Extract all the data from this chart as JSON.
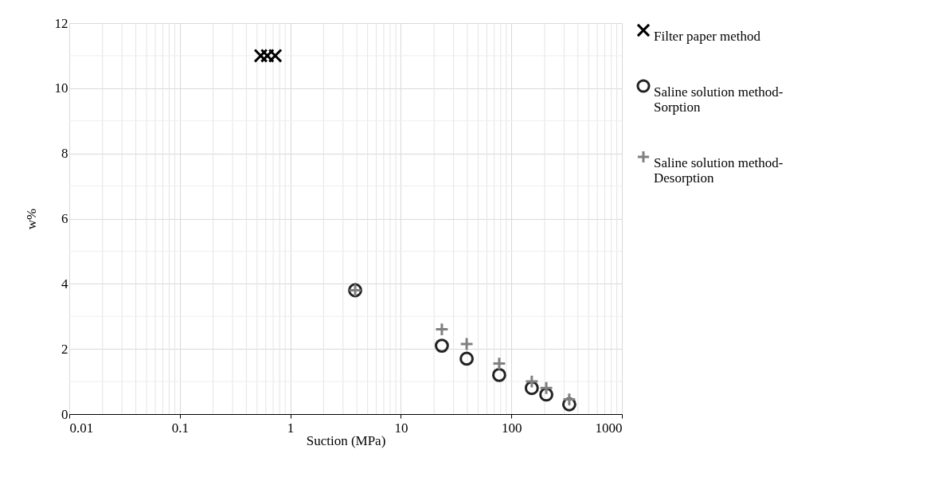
{
  "chart_data": {
    "type": "scatter",
    "xlabel": "Suction (MPa)",
    "ylabel": "w%",
    "log": "x",
    "xlim": [
      0.01,
      1000
    ],
    "xticks": [
      0.01,
      0.1,
      1,
      10,
      100,
      1000
    ],
    "ylim": [
      0,
      12
    ],
    "yticks": [
      0,
      2,
      4,
      6,
      8,
      10,
      12
    ],
    "grid": true,
    "legend": "top right",
    "series": [
      {
        "name": "Filter paper method",
        "color": "#000000",
        "marker": "cross",
        "x": [
          0.54,
          0.62,
          0.73
        ],
        "values": [
          11,
          11,
          11
        ]
      },
      {
        "name": "Saline solution method-Sorption",
        "color": "#222222",
        "marker": "circle",
        "x": [
          3.86,
          23.5,
          39.4,
          77.6,
          153,
          207,
          334
        ],
        "values": [
          3.8,
          2.1,
          1.7,
          1.2,
          0.8,
          0.6,
          0.3
        ]
      },
      {
        "name": "Saline solution method-Desorption",
        "color": "#808080",
        "marker": "plus",
        "x": [
          3.86,
          23.5,
          39.4,
          77.6,
          153,
          207,
          334
        ],
        "values": [
          3.8,
          2.6,
          2.15,
          1.55,
          1.0,
          0.8,
          0.45
        ]
      }
    ]
  }
}
